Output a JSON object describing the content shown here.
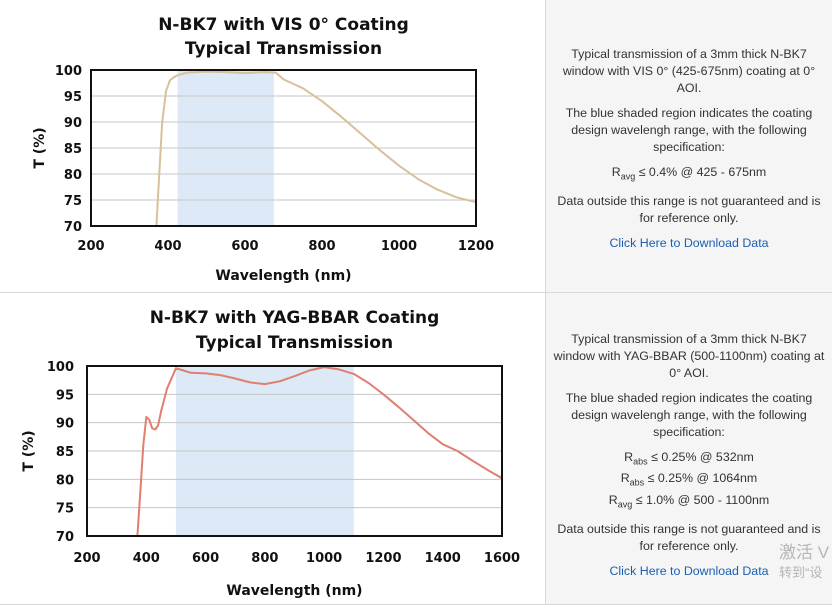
{
  "chart_data": [
    {
      "type": "line",
      "title_lines": [
        "N-BK7 with VIS 0° Coating",
        "Typical Transmission"
      ],
      "xlabel": "Wavelength (nm)",
      "ylabel": "T (%)",
      "xlim": [
        200,
        1200
      ],
      "ylim": [
        70,
        100
      ],
      "xticks": [
        200,
        400,
        600,
        800,
        1000,
        1200
      ],
      "yticks": [
        70,
        75,
        80,
        85,
        90,
        95,
        100
      ],
      "grid": "horizontal",
      "shaded_region": [
        425,
        675
      ],
      "shade_color": "#dde9f6",
      "line_color": "#d8c09a",
      "series": [
        {
          "x": [
            370,
            375,
            385,
            395,
            405,
            415,
            425,
            450,
            500,
            550,
            600,
            650,
            680,
            700,
            750,
            800,
            850,
            900,
            950,
            1000,
            1050,
            1100,
            1150,
            1200
          ],
          "y": [
            70,
            77,
            90,
            96,
            98,
            98.6,
            99,
            99.5,
            99.7,
            99.6,
            99.4,
            99.6,
            99.5,
            98.2,
            96.5,
            94,
            91,
            87.8,
            84.6,
            81.6,
            79,
            77,
            75.5,
            74.6
          ]
        }
      ]
    },
    {
      "type": "line",
      "title_lines": [
        "N-BK7 with YAG-BBAR Coating",
        "Typical Transmission"
      ],
      "xlabel": "Wavelength (nm)",
      "ylabel": "T (%)",
      "xlim": [
        200,
        1600
      ],
      "ylim": [
        70,
        100
      ],
      "xticks": [
        200,
        400,
        600,
        800,
        1000,
        1200,
        1400,
        1600
      ],
      "yticks": [
        70,
        75,
        80,
        85,
        90,
        95,
        100
      ],
      "grid": "horizontal",
      "shaded_region": [
        500,
        1100
      ],
      "shade_color": "#dde9f6",
      "line_color": "#e07f70",
      "series": [
        {
          "x": [
            370,
            380,
            390,
            400,
            410,
            420,
            430,
            440,
            450,
            470,
            500,
            520,
            550,
            600,
            650,
            700,
            750,
            800,
            850,
            900,
            950,
            1000,
            1050,
            1100,
            1150,
            1200,
            1250,
            1300,
            1350,
            1400,
            1450,
            1500,
            1550,
            1600
          ],
          "y": [
            70,
            78,
            86,
            91,
            90.5,
            89,
            88.8,
            89.5,
            92,
            96,
            99.6,
            99.3,
            98.8,
            98.7,
            98.4,
            97.8,
            97.1,
            96.8,
            97.3,
            98.2,
            99.2,
            99.8,
            99.4,
            98.6,
            97,
            95,
            92.8,
            90.5,
            88.2,
            86.2,
            85,
            83.3,
            81.7,
            80.2
          ]
        }
      ]
    }
  ],
  "panels": [
    {
      "description": "Typical transmission of a 3mm thick N-BK7 window with VIS 0° (425-675nm) coating at 0° AOI.",
      "shade_note": "The blue shaded region indicates the coating design wavelengh range, with the following specification:",
      "specs": [
        {
          "symbol": "R",
          "sub": "avg",
          "text": "≤ 0.4% @ 425 - 675nm"
        }
      ],
      "disclaimer": "Data outside this range is not guaranteed and is for reference only.",
      "link": "Click Here to Download Data"
    },
    {
      "description": "Typical transmission of a 3mm thick N-BK7 window with YAG-BBAR (500-1100nm) coating at 0° AOI.",
      "shade_note": "The blue shaded region indicates the coating design wavelengh range, with the following specification:",
      "specs": [
        {
          "symbol": "R",
          "sub": "abs",
          "text": "≤ 0.25% @ 532nm"
        },
        {
          "symbol": "R",
          "sub": "abs",
          "text": "≤ 0.25% @ 1064nm"
        },
        {
          "symbol": "R",
          "sub": "avg",
          "text": "≤ 1.0% @ 500 - 1100nm"
        }
      ],
      "disclaimer": "Data outside this range is not guaranteed and is for reference only.",
      "link": "Click Here to Download Data"
    }
  ],
  "watermark": {
    "line1": "激活 V",
    "line2": "转到“设"
  }
}
